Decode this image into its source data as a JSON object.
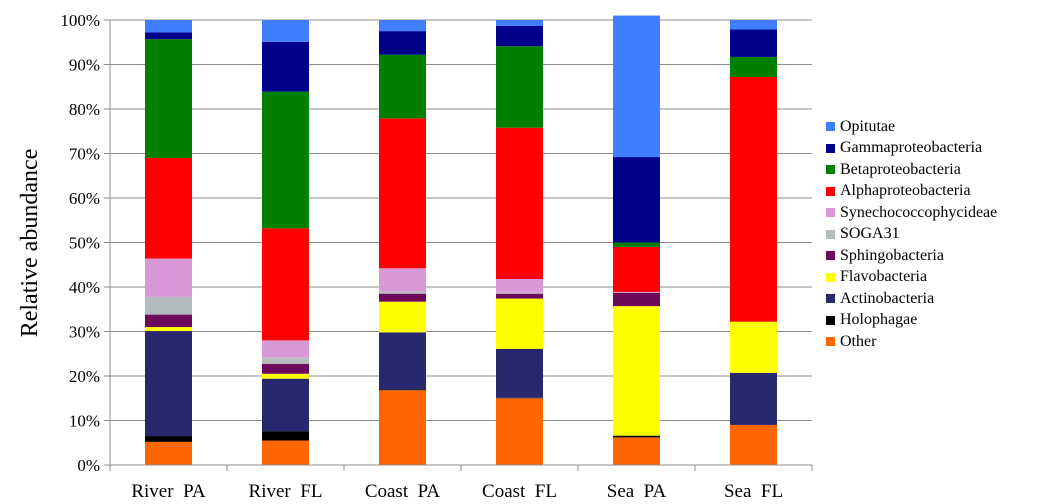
{
  "chart_data": {
    "type": "bar",
    "stacked": true,
    "percent": true,
    "title": "",
    "xlabel": "",
    "ylabel": "Relative abundance",
    "ylim": [
      0,
      100
    ],
    "y_ticks": [
      "0%",
      "10%",
      "20%",
      "30%",
      "40%",
      "50%",
      "60%",
      "70%",
      "80%",
      "90%",
      "100%"
    ],
    "grid": true,
    "legend_position": "right",
    "categories": [
      "River  PA",
      "River  FL",
      "Coast  PA",
      "Coast  FL",
      "Sea  PA",
      "Sea  FL"
    ],
    "series": [
      {
        "name": "Other",
        "color": "#ff6600",
        "values": [
          5.2,
          5.5,
          16.8,
          15.0,
          6.2,
          9.0
        ]
      },
      {
        "name": "Holophagae",
        "color": "#000000",
        "values": [
          1.3,
          2.1,
          0.2,
          0.1,
          0.4,
          0.0
        ]
      },
      {
        "name": "Actinobacteria",
        "color": "#28286e",
        "values": [
          23.6,
          11.8,
          12.8,
          11.0,
          0.0,
          11.7
        ]
      },
      {
        "name": "Flavobacteria",
        "color": "#ffff00",
        "values": [
          0.9,
          1.1,
          6.9,
          11.3,
          29.1,
          11.5
        ]
      },
      {
        "name": "Sphingobacteria",
        "color": "#6e0a5c",
        "values": [
          2.8,
          2.2,
          1.8,
          1.1,
          3.0,
          0.0
        ]
      },
      {
        "name": "SOGA31",
        "color": "#b4bcbe",
        "values": [
          4.0,
          1.5,
          0.5,
          0.2,
          0.0,
          0.0
        ]
      },
      {
        "name": "Synechococcophycideae",
        "color": "#d898d8",
        "values": [
          8.6,
          3.8,
          5.2,
          3.1,
          0.2,
          0.0
        ]
      },
      {
        "name": "Alphaproteobacteria",
        "color": "#ff0000",
        "values": [
          22.6,
          25.2,
          33.7,
          34.0,
          10.1,
          55.0
        ]
      },
      {
        "name": "Betaproteobacteria",
        "color": "#008000",
        "values": [
          26.7,
          30.7,
          14.3,
          18.3,
          1.0,
          4.5
        ]
      },
      {
        "name": "Gammaproteobacteria",
        "color": "#00008b",
        "values": [
          1.5,
          11.2,
          5.3,
          4.6,
          19.2,
          6.2
        ]
      },
      {
        "name": "Opitutae",
        "color": "#3f7fff",
        "values": [
          2.8,
          4.9,
          2.5,
          1.3,
          31.8,
          2.1
        ]
      }
    ],
    "legend_order": [
      "Opitutae",
      "Gammaproteobacteria",
      "Betaproteobacteria",
      "Alphaproteobacteria",
      "Synechococcophycideae",
      "SOGA31",
      "Sphingobacteria",
      "Flavobacteria",
      "Actinobacteria",
      "Holophagae",
      "Other"
    ]
  }
}
